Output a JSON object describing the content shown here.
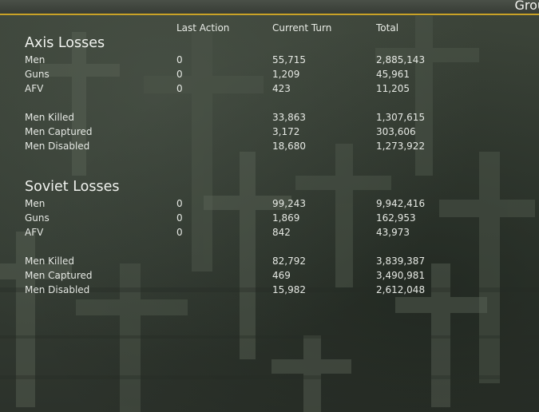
{
  "header": {
    "title": "Grou"
  },
  "columns": {
    "last_action": "Last Action",
    "current_turn": "Current Turn",
    "total": "Total"
  },
  "axis": {
    "title": "Axis Losses",
    "rows": [
      {
        "label": "Men",
        "last": "0",
        "turn": "55,715",
        "total": "2,885,143"
      },
      {
        "label": "Guns",
        "last": "0",
        "turn": "1,209",
        "total": "45,961"
      },
      {
        "label": "AFV",
        "last": "0",
        "turn": "423",
        "total": "11,205"
      },
      {
        "label": "Men Killed",
        "last": "",
        "turn": "33,863",
        "total": "1,307,615"
      },
      {
        "label": "Men Captured",
        "last": "",
        "turn": "3,172",
        "total": "303,606"
      },
      {
        "label": "Men Disabled",
        "last": "",
        "turn": "18,680",
        "total": "1,273,922"
      }
    ]
  },
  "soviet": {
    "title": "Soviet Losses",
    "rows": [
      {
        "label": "Men",
        "last": "0",
        "turn": "99,243",
        "total": "9,942,416"
      },
      {
        "label": "Guns",
        "last": "0",
        "turn": "1,869",
        "total": "162,953"
      },
      {
        "label": "AFV",
        "last": "0",
        "turn": "842",
        "total": "43,973"
      },
      {
        "label": "Men Killed",
        "last": "",
        "turn": "82,792",
        "total": "3,839,387"
      },
      {
        "label": "Men Captured",
        "last": "",
        "turn": "469",
        "total": "3,490,981"
      },
      {
        "label": "Men Disabled",
        "last": "",
        "turn": "15,982",
        "total": "2,612,048"
      }
    ]
  },
  "colors": {
    "accent": "#c9a227",
    "text": "#e6e9e4",
    "background": "#3a4239"
  }
}
